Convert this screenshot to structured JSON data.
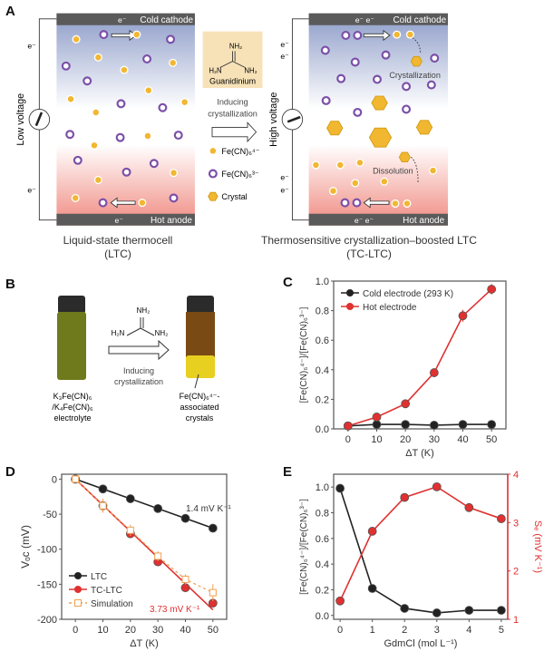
{
  "panel_a": {
    "label": "A",
    "cold_cathode": "Cold cathode",
    "hot_anode": "Hot anode",
    "electron": "e⁻",
    "electron_pair": "e⁻ e⁻",
    "low_voltage": "Low voltage",
    "high_voltage": "High voltage",
    "guanidinium_label": "Guanidinium",
    "nh2_top": "NH₂",
    "h2n": "H₂N",
    "nh2_right": "NH₂",
    "inducing": "Inducing",
    "crystallization": "crystallization",
    "legend": [
      "Fe(CN)₆⁴⁻",
      "Fe(CN)₆³⁻",
      "Crystal"
    ],
    "crystallization_note": "Crystallization",
    "dissolution_note": "Dissolution",
    "left_caption_1": "Liquid-state thermocell",
    "left_caption_2": "(LTC)",
    "right_caption_1": "Thermosensitive crystallization–boosted LTC",
    "right_caption_2": "(TC-LTC)",
    "colors": {
      "fe4": "#f2b731",
      "fe3": "#7b4fa8",
      "cold": "#8d9cc8",
      "hot": "#f08a80",
      "electrode": "#5a5a5a",
      "guanidinium_box": "#f7e2b8"
    }
  },
  "panel_b": {
    "label": "B",
    "nh2_top": "NH₂",
    "h2n": "H₂N",
    "nh2_right": "NH₂",
    "inducing": "Inducing",
    "crystallization": "crystallization",
    "left_caption": [
      "K₃Fe(CN)₆",
      "/K₄Fe(CN)₆",
      "electrolyte"
    ],
    "right_caption": [
      "Fe(CN)₆⁴⁻-",
      "associated",
      "crystals"
    ]
  },
  "chart_data": [
    {
      "panel": "C",
      "type": "line",
      "x": [
        0,
        10,
        20,
        30,
        40,
        50
      ],
      "xlabel": "ΔT (K)",
      "ylabel": "[Fe(CN)₆⁴⁻]/[Fe(CN)₆³⁻]",
      "xlim": [
        -5,
        55
      ],
      "ylim": [
        0,
        1.0
      ],
      "xticks": [
        0,
        10,
        20,
        30,
        40,
        50
      ],
      "yticks": [
        "0.0",
        "0.2",
        "0.4",
        "0.6",
        "0.8",
        "1.0"
      ],
      "legend": "top-left",
      "series": [
        {
          "name": "Cold electrode (293 K)",
          "color": "#222222",
          "values": [
            0.02,
            0.03,
            0.03,
            0.025,
            0.03,
            0.03
          ]
        },
        {
          "name": "Hot electrode",
          "color": "#e03030",
          "values": [
            0.02,
            0.08,
            0.17,
            0.38,
            0.765,
            0.945
          ],
          "errors": [
            0.01,
            0.015,
            0.015,
            0.03,
            0.04,
            0.035
          ]
        }
      ]
    },
    {
      "panel": "D",
      "type": "line",
      "x": [
        0,
        10,
        20,
        30,
        40,
        50
      ],
      "xlabel": "ΔT (K)",
      "ylabel": "Vₒᴄ (mV)",
      "xlim": [
        -5,
        55
      ],
      "ylim": [
        -200,
        7
      ],
      "xticks": [
        0,
        10,
        20,
        30,
        40,
        50
      ],
      "yticks": [
        "-200",
        "-150",
        "-100",
        "-50",
        "0"
      ],
      "legend": "bottom-left",
      "series": [
        {
          "name": "LTC",
          "color": "#222222",
          "values": [
            0,
            -14,
            -28,
            -42,
            -56,
            -70
          ],
          "fit_slope": -1.4
        },
        {
          "name": "TC-LTC",
          "color": "#e03030",
          "values": [
            0,
            -38,
            -78,
            -118,
            -155,
            -177
          ],
          "fit_slope": -3.73
        },
        {
          "name": "Simulation",
          "color": "#f0a050",
          "values": [
            0,
            -38,
            -73,
            -110,
            -143,
            -162
          ],
          "errors": [
            0,
            10,
            8,
            7,
            7,
            12
          ],
          "dashed": true
        }
      ],
      "annotations": [
        "1.4 mV K⁻¹",
        "3.73 mV K⁻¹"
      ]
    },
    {
      "panel": "E",
      "type": "line",
      "x": [
        0,
        1,
        2,
        3,
        4,
        5
      ],
      "xlabel": "GdmCl (mol L⁻¹)",
      "ylabel": "[Fe(CN)₆⁴⁻]/[Fe(CN)₆³⁻]",
      "ylabel_right": "Sₑ (mV K⁻¹)",
      "xlim": [
        -0.2,
        5.2
      ],
      "ylim": [
        -0.03,
        1.1
      ],
      "ylim_right": [
        1,
        4
      ],
      "xticks": [
        0,
        1,
        2,
        3,
        4,
        5
      ],
      "yticks": [
        "0.0",
        "0.2",
        "0.4",
        "0.6",
        "0.8",
        "1.0"
      ],
      "yticks_right": [
        "1",
        "2",
        "3",
        "4"
      ],
      "series": [
        {
          "axis": "left",
          "color": "#222222",
          "values": [
            0.99,
            0.21,
            0.055,
            0.02,
            0.04,
            0.04
          ]
        },
        {
          "axis": "right",
          "color": "#e03030",
          "values": [
            1.38,
            2.82,
            3.52,
            3.74,
            3.31,
            3.08
          ]
        }
      ]
    }
  ]
}
